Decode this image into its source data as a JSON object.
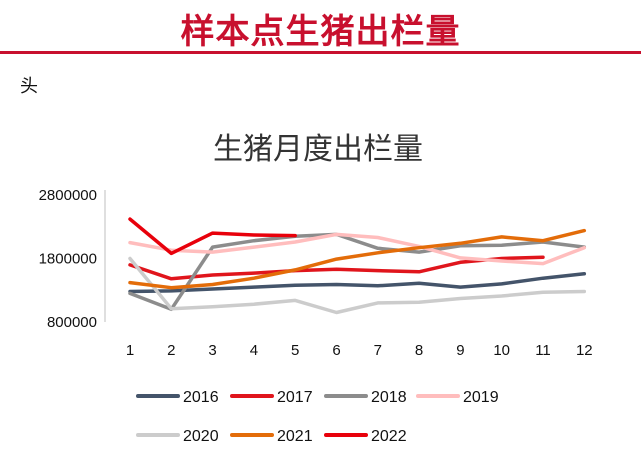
{
  "header": {
    "title": "样本点生猪出栏量",
    "unit": "头"
  },
  "colors": {
    "accent": "#c8102e"
  },
  "chart_data": {
    "type": "line",
    "title": "生猪月度出栏量",
    "xlabel": "",
    "ylabel": "",
    "categories": [
      "1",
      "2",
      "3",
      "4",
      "5",
      "6",
      "7",
      "8",
      "9",
      "10",
      "11",
      "12"
    ],
    "yticks": [
      "2800000",
      "1800000",
      "800000"
    ],
    "ylim": [
      800000,
      2800000
    ],
    "grid": false,
    "legend_position": "bottom",
    "series": [
      {
        "name": "2016",
        "color": "#44546a",
        "values": [
          1280000,
          1290000,
          1320000,
          1350000,
          1380000,
          1390000,
          1370000,
          1410000,
          1350000,
          1400000,
          1490000,
          1560000
        ]
      },
      {
        "name": "2017",
        "color": "#e0151c",
        "values": [
          1700000,
          1480000,
          1540000,
          1570000,
          1610000,
          1630000,
          1610000,
          1590000,
          1740000,
          1800000,
          1820000,
          null
        ]
      },
      {
        "name": "2018",
        "color": "#8c8c8c",
        "values": [
          1250000,
          1000000,
          1980000,
          2080000,
          2150000,
          2180000,
          1960000,
          1900000,
          2000000,
          2010000,
          2060000,
          1980000
        ]
      },
      {
        "name": "2019",
        "color": "#ffbdbd",
        "values": [
          2050000,
          1930000,
          1900000,
          1980000,
          2060000,
          2180000,
          2130000,
          1990000,
          1810000,
          1760000,
          1720000,
          1970000
        ]
      },
      {
        "name": "2020",
        "color": "#cccccc",
        "values": [
          1800000,
          1010000,
          1040000,
          1080000,
          1140000,
          950000,
          1100000,
          1110000,
          1170000,
          1210000,
          1270000,
          1280000
        ]
      },
      {
        "name": "2021",
        "color": "#e36c09",
        "values": [
          1420000,
          1340000,
          1390000,
          1490000,
          1620000,
          1790000,
          1890000,
          1970000,
          2040000,
          2140000,
          2080000,
          2240000
        ]
      },
      {
        "name": "2022",
        "color": "#e8000b",
        "values": [
          2420000,
          1880000,
          2200000,
          2170000,
          2160000,
          null,
          null,
          null,
          null,
          null,
          null,
          null
        ]
      }
    ]
  }
}
